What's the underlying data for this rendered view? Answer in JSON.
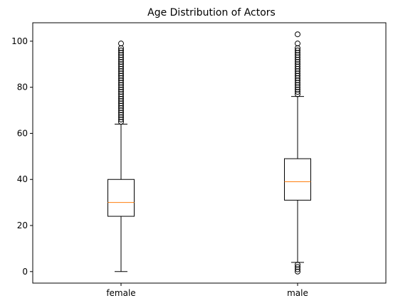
{
  "chart_data": {
    "type": "box",
    "title": "Age Distribution of Actors",
    "xlabel": "",
    "ylabel": "",
    "categories": [
      "female",
      "male"
    ],
    "ylim": [
      -5,
      108
    ],
    "yticks": [
      0,
      20,
      40,
      60,
      80,
      100
    ],
    "grid": false,
    "legend": "none",
    "boxes": [
      {
        "category": "female",
        "whisker_low": 0,
        "q1": 24,
        "median": 30,
        "q3": 40,
        "whisker_high": 64,
        "outliers_high": [
          65,
          66,
          67,
          68,
          69,
          70,
          71,
          72,
          73,
          74,
          75,
          76,
          77,
          78,
          79,
          80,
          81,
          82,
          83,
          84,
          85,
          86,
          87,
          88,
          89,
          90,
          91,
          92,
          93,
          94,
          95,
          96,
          97,
          99
        ],
        "outliers_low": []
      },
      {
        "category": "male",
        "whisker_low": 4,
        "q1": 31,
        "median": 39,
        "q3": 49,
        "whisker_high": 76,
        "outliers_high": [
          77,
          78,
          79,
          80,
          81,
          82,
          83,
          84,
          85,
          86,
          87,
          88,
          89,
          90,
          91,
          92,
          93,
          94,
          95,
          96,
          97,
          99,
          103
        ],
        "outliers_low": [
          0,
          1,
          2,
          3
        ]
      }
    ],
    "colors": {
      "box": "#000000",
      "median": "#ff7f0e",
      "background": "#ffffff"
    }
  }
}
